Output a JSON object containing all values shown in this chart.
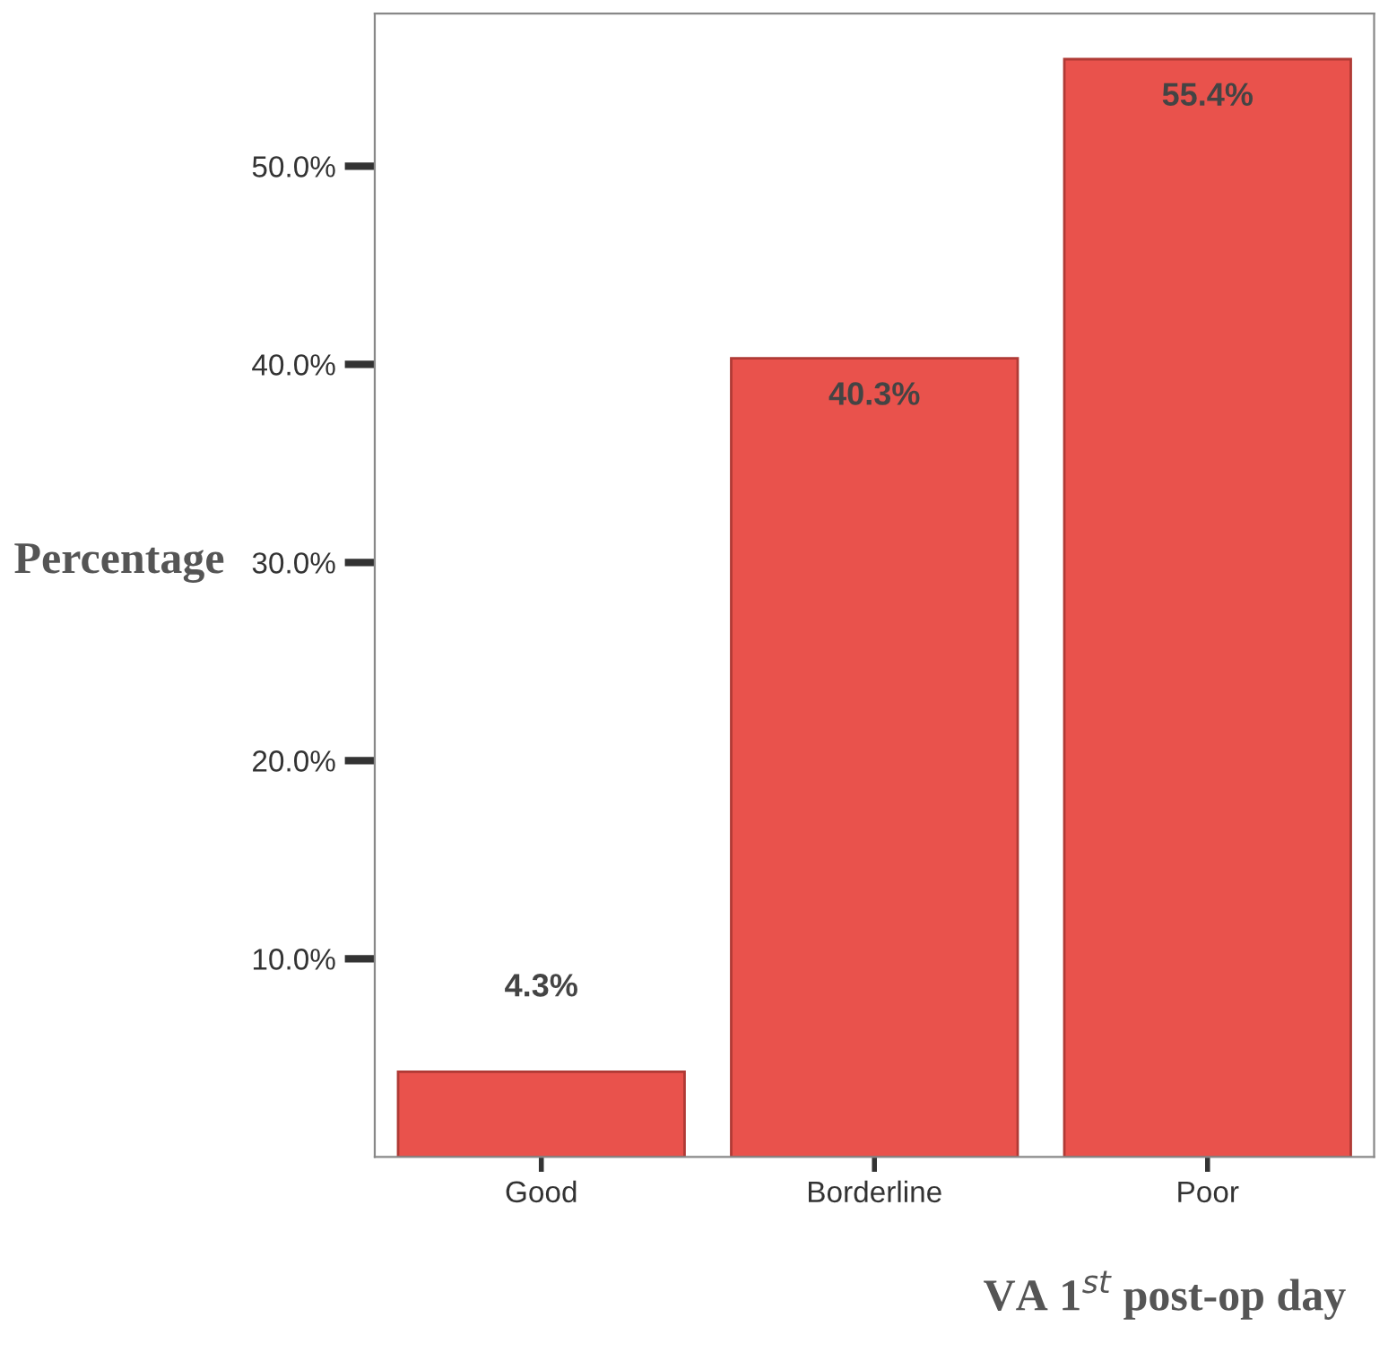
{
  "chart_data": {
    "type": "bar",
    "categories": [
      "Good",
      "Borderline",
      "Poor"
    ],
    "values": [
      4.3,
      40.3,
      55.4
    ],
    "value_labels": [
      "4.3%",
      "40.3%",
      "55.4%"
    ],
    "color": "#e9524c",
    "ylim": [
      0,
      57.7
    ],
    "yticks": [
      {
        "value": 10,
        "label": "10.0%"
      },
      {
        "value": 20,
        "label": "20.0%"
      },
      {
        "value": 30,
        "label": "30.0%"
      },
      {
        "value": 40,
        "label": "40.0%"
      },
      {
        "value": 50,
        "label": "50.0%"
      }
    ],
    "xlabel": "VA 1$^{st}$ post-op day",
    "ylabel": "Percentage",
    "grid": false,
    "legend": false
  }
}
